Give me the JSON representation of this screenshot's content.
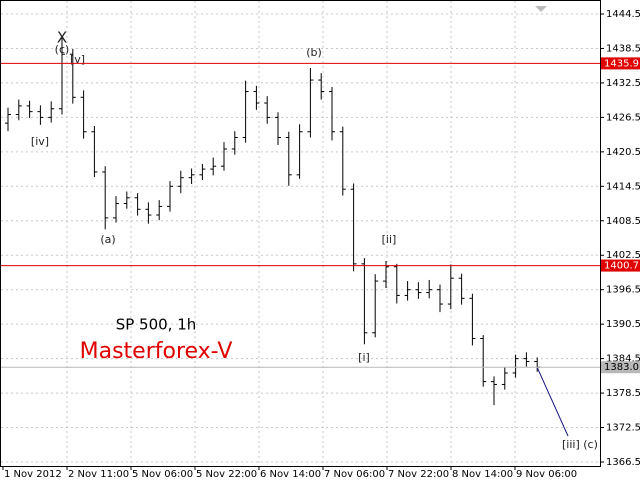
{
  "chart_data": {
    "type": "ohlc",
    "title": "SP 500, 1h",
    "subtitle": "Masterforex-V",
    "color": "#000000",
    "grid": true,
    "ylim": [
      1366.5,
      1444.5
    ],
    "yticks": [
      1444.5,
      1438.5,
      1432.5,
      1426.5,
      1420.5,
      1414.5,
      1408.5,
      1402.5,
      1396.5,
      1390.5,
      1384.5,
      1378.5,
      1372.5,
      1366.5
    ],
    "x_labels": [
      "1 Nov 2012",
      "2 Nov 11:00",
      "5 Nov 06:00",
      "5 Nov 22:00",
      "6 Nov 14:00",
      "7 Nov 06:00",
      "7 Nov 22:00",
      "8 Nov 14:00",
      "9 Nov 06:00"
    ],
    "open": [
      1425.5,
      1427.0,
      1428.5,
      1427.5,
      1426.5,
      1428.0,
      1437.5,
      1430.0,
      1424.0,
      1417.0,
      1409.0,
      1411.5,
      1412.5,
      1410.5,
      1409.5,
      1411.0,
      1414.5,
      1416.0,
      1416.5,
      1417.5,
      1418.0,
      1421.0,
      1423.0,
      1431.0,
      1429.0,
      1426.5,
      1423.0,
      1416.5,
      1424.0,
      1433.0,
      1431.0,
      1424.0,
      1414.0,
      1401.0,
      1389.0,
      1398.0,
      1400.5,
      1395.5,
      1396.5,
      1396.0,
      1396.5,
      1394.0,
      1398.5,
      1395.0,
      1388.0,
      1380.5,
      1380.0,
      1382.0,
      1384.5,
      1384.0
    ],
    "high": [
      1428.2,
      1429.6,
      1429.4,
      1428.6,
      1429.3,
      1440.3,
      1438.4,
      1431.2,
      1425.0,
      1418.0,
      1412.8,
      1413.6,
      1413.3,
      1411.7,
      1412.1,
      1415.4,
      1417.2,
      1417.6,
      1418.4,
      1419.5,
      1422.2,
      1424.1,
      1432.9,
      1432.0,
      1430.2,
      1427.4,
      1424.0,
      1425.3,
      1435.1,
      1434.2,
      1431.8,
      1424.9,
      1415.0,
      1402.0,
      1399.2,
      1401.5,
      1401.0,
      1398.0,
      1397.8,
      1398.2,
      1397.4,
      1400.9,
      1399.3,
      1395.8,
      1388.6,
      1381.4,
      1383.0,
      1385.2,
      1385.6,
      1384.7
    ],
    "low": [
      1424.1,
      1426.0,
      1426.4,
      1425.2,
      1425.6,
      1427.0,
      1428.9,
      1422.8,
      1416.1,
      1407.0,
      1408.2,
      1410.6,
      1409.4,
      1408.0,
      1408.6,
      1410.1,
      1413.3,
      1414.9,
      1415.6,
      1416.4,
      1417.2,
      1420.0,
      1422.1,
      1427.8,
      1425.4,
      1421.7,
      1414.6,
      1415.8,
      1423.0,
      1429.6,
      1422.5,
      1412.9,
      1399.7,
      1387.0,
      1388.2,
      1396.8,
      1394.1,
      1394.6,
      1394.9,
      1395.0,
      1392.6,
      1393.1,
      1393.9,
      1386.8,
      1379.6,
      1376.4,
      1379.1,
      1381.2,
      1383.1,
      1382.2
    ],
    "close": [
      1427.0,
      1428.5,
      1427.5,
      1426.5,
      1428.0,
      1437.5,
      1430.0,
      1424.0,
      1417.0,
      1409.0,
      1411.5,
      1412.5,
      1410.5,
      1409.5,
      1411.0,
      1414.5,
      1416.0,
      1416.5,
      1417.5,
      1418.0,
      1421.0,
      1423.0,
      1431.0,
      1429.0,
      1426.5,
      1423.0,
      1416.5,
      1424.0,
      1433.0,
      1431.0,
      1424.0,
      1414.0,
      1401.0,
      1389.0,
      1398.0,
      1400.5,
      1395.5,
      1396.5,
      1396.0,
      1396.5,
      1394.0,
      1398.5,
      1395.0,
      1388.0,
      1380.5,
      1380.0,
      1382.0,
      1384.5,
      1384.0,
      1383.0
    ],
    "price_lines": [
      {
        "value": 1435.9,
        "color": "#e00000"
      },
      {
        "value": 1400.7,
        "color": "#e00000"
      },
      {
        "value": {
          "value": 1383.0,
          "label": "1383.0"
        },
        "color": "#b8b8b8"
      }
    ],
    "annotations": [
      "X",
      "(c)",
      "[v]",
      "[iv]",
      "(a)",
      "(b)",
      "[i]",
      "[ii]",
      "[iii] (c)"
    ]
  }
}
